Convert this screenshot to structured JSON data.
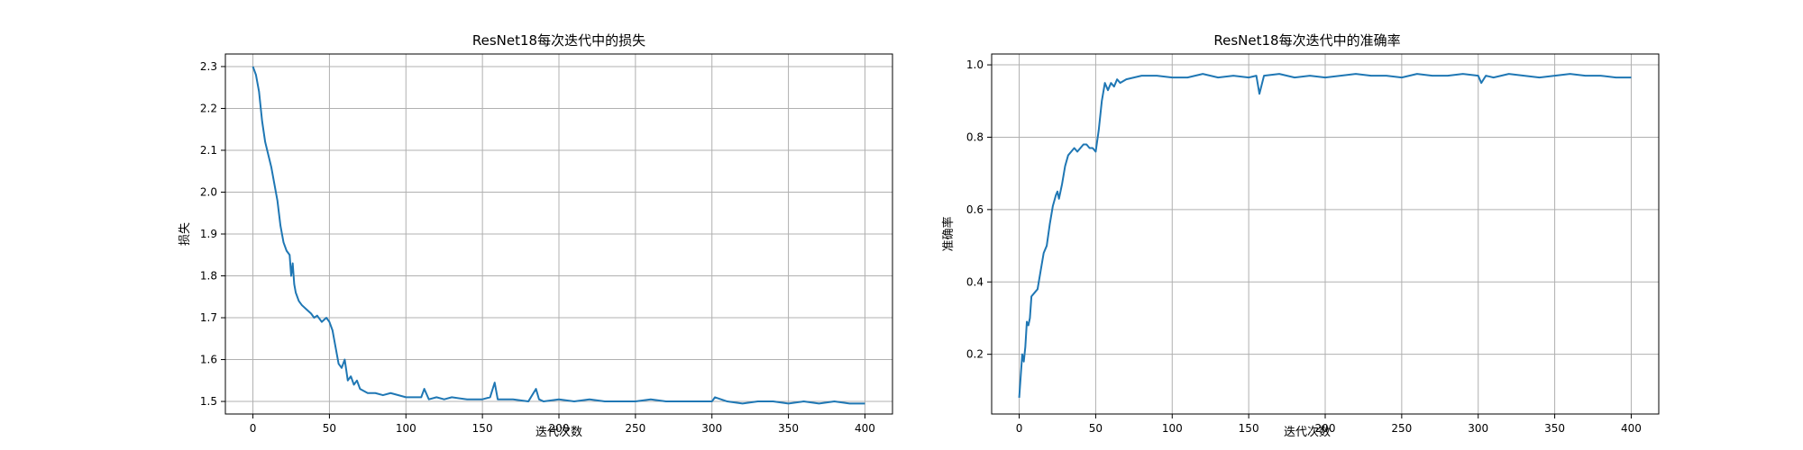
{
  "chart_data": [
    {
      "type": "line",
      "title": "ResNet18每次迭代中的损失",
      "xlabel": "迭代次数",
      "ylabel": "损失",
      "xlim": [
        -18,
        418
      ],
      "ylim": [
        1.47,
        2.33
      ],
      "xticks": [
        0,
        50,
        100,
        150,
        200,
        250,
        300,
        350,
        400
      ],
      "yticks": [
        1.5,
        1.6,
        1.7,
        1.8,
        1.9,
        2.0,
        2.1,
        2.2,
        2.3
      ],
      "grid": true,
      "color": "#1f77b4",
      "series": [
        {
          "x": [
            0,
            2,
            4,
            6,
            8,
            10,
            12,
            14,
            16,
            18,
            20,
            22,
            24,
            25,
            26,
            27,
            28,
            30,
            32,
            35,
            38,
            40,
            42,
            45,
            48,
            50,
            52,
            54,
            56,
            58,
            60,
            62,
            64,
            66,
            68,
            70,
            75,
            80,
            85,
            90,
            100,
            110,
            112,
            115,
            120,
            125,
            130,
            140,
            150,
            155,
            158,
            160,
            165,
            170,
            180,
            185,
            187,
            190,
            200,
            210,
            220,
            230,
            240,
            250,
            260,
            270,
            280,
            290,
            300,
            302,
            310,
            320,
            330,
            340,
            350,
            360,
            370,
            380,
            390,
            400
          ],
          "y": [
            2.3,
            2.28,
            2.24,
            2.17,
            2.12,
            2.09,
            2.06,
            2.02,
            1.98,
            1.92,
            1.88,
            1.86,
            1.85,
            1.8,
            1.83,
            1.78,
            1.76,
            1.74,
            1.73,
            1.72,
            1.71,
            1.7,
            1.705,
            1.69,
            1.7,
            1.69,
            1.67,
            1.63,
            1.59,
            1.58,
            1.6,
            1.55,
            1.56,
            1.54,
            1.55,
            1.53,
            1.52,
            1.52,
            1.515,
            1.52,
            1.51,
            1.51,
            1.53,
            1.505,
            1.51,
            1.505,
            1.51,
            1.505,
            1.505,
            1.51,
            1.545,
            1.505,
            1.505,
            1.505,
            1.5,
            1.53,
            1.505,
            1.5,
            1.505,
            1.5,
            1.505,
            1.5,
            1.5,
            1.5,
            1.505,
            1.5,
            1.5,
            1.5,
            1.5,
            1.51,
            1.5,
            1.495,
            1.5,
            1.5,
            1.495,
            1.5,
            1.495,
            1.5,
            1.495,
            1.495
          ]
        }
      ]
    },
    {
      "type": "line",
      "title": "ResNet18每次迭代中的准确率",
      "xlabel": "迭代次数",
      "ylabel": "准确率",
      "xlim": [
        -18,
        418
      ],
      "ylim": [
        0.035,
        1.03
      ],
      "xticks": [
        0,
        50,
        100,
        150,
        200,
        250,
        300,
        350,
        400
      ],
      "yticks": [
        0.2,
        0.4,
        0.6,
        0.8,
        1.0
      ],
      "grid": true,
      "color": "#1f77b4",
      "series": [
        {
          "x": [
            0,
            2,
            3,
            4,
            5,
            6,
            7,
            8,
            10,
            12,
            14,
            16,
            18,
            20,
            22,
            24,
            25,
            26,
            28,
            30,
            32,
            34,
            36,
            38,
            40,
            42,
            44,
            46,
            48,
            50,
            52,
            54,
            56,
            58,
            60,
            62,
            64,
            66,
            70,
            75,
            80,
            90,
            100,
            110,
            120,
            130,
            140,
            150,
            155,
            157,
            160,
            170,
            180,
            190,
            200,
            210,
            220,
            230,
            240,
            250,
            260,
            270,
            280,
            290,
            300,
            302,
            305,
            310,
            320,
            330,
            340,
            350,
            360,
            370,
            380,
            390,
            400
          ],
          "y": [
            0.08,
            0.2,
            0.18,
            0.22,
            0.29,
            0.28,
            0.3,
            0.36,
            0.37,
            0.38,
            0.43,
            0.48,
            0.5,
            0.56,
            0.61,
            0.64,
            0.65,
            0.63,
            0.67,
            0.72,
            0.75,
            0.76,
            0.77,
            0.76,
            0.77,
            0.78,
            0.78,
            0.77,
            0.77,
            0.76,
            0.82,
            0.9,
            0.95,
            0.93,
            0.95,
            0.94,
            0.96,
            0.95,
            0.96,
            0.965,
            0.97,
            0.97,
            0.965,
            0.965,
            0.975,
            0.965,
            0.97,
            0.965,
            0.97,
            0.92,
            0.97,
            0.975,
            0.965,
            0.97,
            0.965,
            0.97,
            0.975,
            0.97,
            0.97,
            0.965,
            0.975,
            0.97,
            0.97,
            0.975,
            0.97,
            0.95,
            0.97,
            0.965,
            0.975,
            0.97,
            0.965,
            0.97,
            0.975,
            0.97,
            0.97,
            0.965,
            0.965
          ]
        }
      ]
    }
  ]
}
